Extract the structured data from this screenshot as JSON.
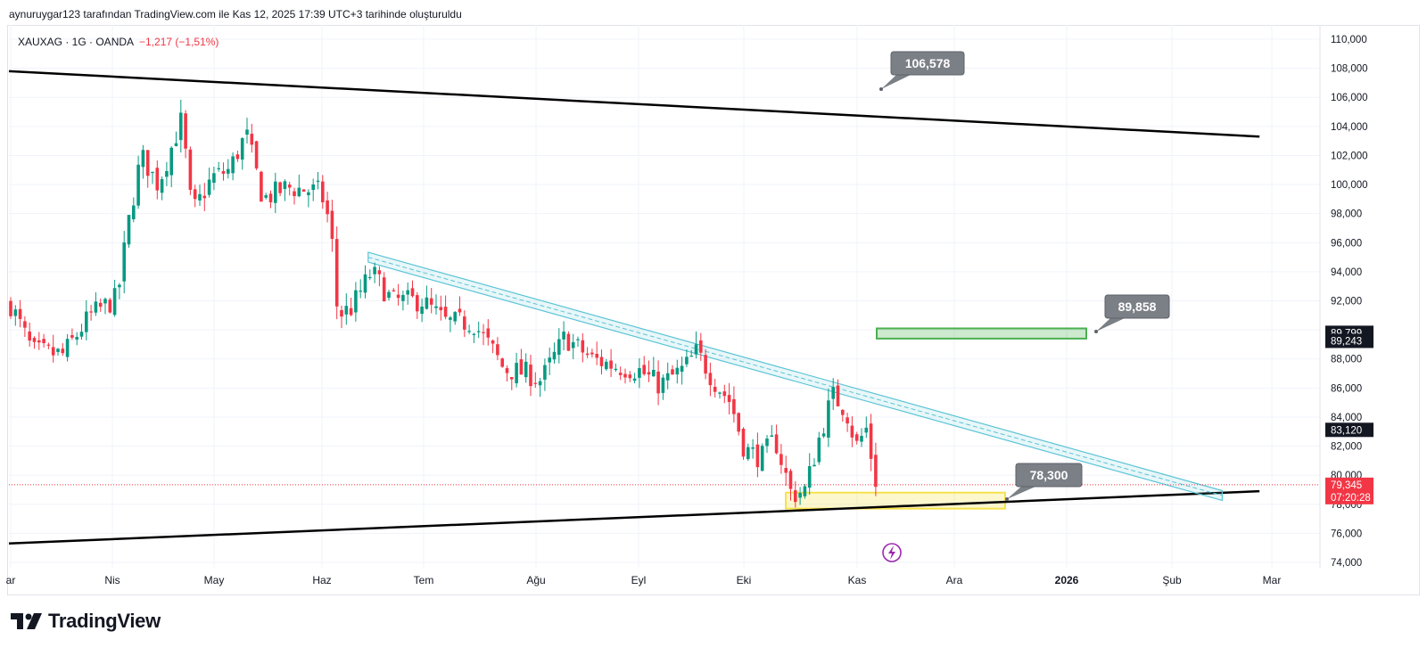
{
  "header": {
    "caption": "aynuruygar123 tarafından TradingView.com ile Kas 12, 2025 17:39 UTC+3 tarihinde oluşturuldu"
  },
  "symbol": {
    "name": "XAUXAG · 1G · OANDA",
    "change": "−1,217 (−1,51%)"
  },
  "brand": {
    "name": "TradingView",
    "icon": "tradingview-logo-icon"
  },
  "colors": {
    "up": "#089981",
    "down": "#f23645",
    "channel": "#5cc4d6",
    "trend": "#000000",
    "green_box": "#4caf50",
    "yellow_box": "#f6e24c",
    "label_bg": "#7b7f86"
  },
  "chart_data": {
    "type": "candlestick",
    "y_axis": {
      "min": 74000,
      "max": 110000,
      "step": 2000,
      "tick_labels": [
        "74,000",
        "76,000",
        "78,000",
        "80,000",
        "82,000",
        "84,000",
        "86,000",
        "88,000",
        "90,000",
        "92,000",
        "94,000",
        "96,000",
        "98,000",
        "100,000",
        "102,000",
        "104,000",
        "106,000",
        "108,000",
        "110,000"
      ]
    },
    "x_axis": {
      "labels": [
        "ar",
        "Nis",
        "May",
        "Haz",
        "Tem",
        "Ağu",
        "Eyl",
        "Eki",
        "Kas",
        "Ara",
        "2026",
        "Şub",
        "Mar"
      ],
      "bold": [
        "2026"
      ]
    },
    "price_labels": [
      {
        "value": 89799,
        "text": "89,799",
        "bg": "#131722"
      },
      {
        "value": 89243,
        "text": "89,243",
        "bg": "#131722"
      },
      {
        "value": 83120,
        "text": "83,120",
        "bg": "#131722"
      },
      {
        "value": 79345,
        "text": "79,345",
        "sub": "07:20:28",
        "bg": "#f23645"
      }
    ],
    "last_price": 79345,
    "annotations": [
      {
        "text": "106,578",
        "value": 106578
      },
      {
        "text": "89,858",
        "value": 89858
      },
      {
        "text": "78,300",
        "value": 78300
      }
    ],
    "zones": [
      {
        "name": "target-zone",
        "from": 89400,
        "to": 90100,
        "color": "#4caf50"
      },
      {
        "name": "support-zone",
        "from": 77700,
        "to": 78800,
        "color": "#f6e24c"
      }
    ],
    "trend_lines": [
      {
        "name": "upper-trendline",
        "from": {
          "date": "2025-03-01",
          "value": 107800
        },
        "to": {
          "date": "2026-03-05",
          "value": 103300
        }
      },
      {
        "name": "lower-trendline",
        "from": {
          "date": "2025-03-01",
          "value": 75300
        },
        "to": {
          "date": "2026-03-05",
          "value": 78900
        }
      }
    ],
    "channel": {
      "from": {
        "date": "2025-06-15",
        "value": 95000
      },
      "to": {
        "date": "2026-02-22",
        "value": 78600
      }
    },
    "price_path": [
      {
        "date": "2025-03-01",
        "value": 92000
      },
      {
        "date": "2025-03-08",
        "value": 88500
      },
      {
        "date": "2025-03-17",
        "value": 88300
      },
      {
        "date": "2025-03-25",
        "value": 91000
      },
      {
        "date": "2025-04-02",
        "value": 92200
      },
      {
        "date": "2025-04-05",
        "value": 97000
      },
      {
        "date": "2025-04-09",
        "value": 102000
      },
      {
        "date": "2025-04-14",
        "value": 100000
      },
      {
        "date": "2025-04-21",
        "value": 104500
      },
      {
        "date": "2025-04-24",
        "value": 98000
      },
      {
        "date": "2025-04-30",
        "value": 100500
      },
      {
        "date": "2025-05-05",
        "value": 101000
      },
      {
        "date": "2025-05-10",
        "value": 103500
      },
      {
        "date": "2025-05-15",
        "value": 99000
      },
      {
        "date": "2025-05-22",
        "value": 99800
      },
      {
        "date": "2025-06-01",
        "value": 99500
      },
      {
        "date": "2025-06-04",
        "value": 97000
      },
      {
        "date": "2025-06-06",
        "value": 91000
      },
      {
        "date": "2025-06-10",
        "value": 91500
      },
      {
        "date": "2025-06-16",
        "value": 94000
      },
      {
        "date": "2025-06-22",
        "value": 92000
      },
      {
        "date": "2025-07-01",
        "value": 92000
      },
      {
        "date": "2025-07-08",
        "value": 90500
      },
      {
        "date": "2025-07-16",
        "value": 90500
      },
      {
        "date": "2025-07-22",
        "value": 88500
      },
      {
        "date": "2025-07-25",
        "value": 87300
      },
      {
        "date": "2025-08-01",
        "value": 87000
      },
      {
        "date": "2025-08-05",
        "value": 86500
      },
      {
        "date": "2025-08-12",
        "value": 89500
      },
      {
        "date": "2025-08-20",
        "value": 88000
      },
      {
        "date": "2025-08-27",
        "value": 87500
      },
      {
        "date": "2025-09-03",
        "value": 87200
      },
      {
        "date": "2025-09-09",
        "value": 86200
      },
      {
        "date": "2025-09-16",
        "value": 87300
      },
      {
        "date": "2025-09-20",
        "value": 88500
      },
      {
        "date": "2025-09-25",
        "value": 86500
      },
      {
        "date": "2025-09-30",
        "value": 85000
      },
      {
        "date": "2025-10-04",
        "value": 81800
      },
      {
        "date": "2025-10-09",
        "value": 81200
      },
      {
        "date": "2025-10-13",
        "value": 82500
      },
      {
        "date": "2025-10-18",
        "value": 78600
      },
      {
        "date": "2025-10-22",
        "value": 79000
      },
      {
        "date": "2025-10-26",
        "value": 82500
      },
      {
        "date": "2025-10-30",
        "value": 85500
      },
      {
        "date": "2025-11-03",
        "value": 84500
      },
      {
        "date": "2025-11-06",
        "value": 82000
      },
      {
        "date": "2025-11-09",
        "value": 83200
      },
      {
        "date": "2025-11-11",
        "value": 80500
      },
      {
        "date": "2025-11-12",
        "value": 79345
      }
    ]
  }
}
